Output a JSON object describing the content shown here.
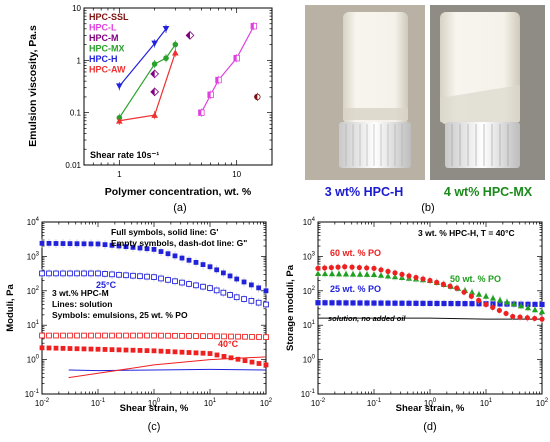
{
  "panels": {
    "a": {
      "label": "(a)",
      "chart_data": {
        "type": "scatter",
        "xscale": "log",
        "yscale": "log",
        "xlim": [
          0.5,
          20
        ],
        "ylim": [
          0.01,
          10
        ],
        "xticks": [
          "1",
          "10"
        ],
        "yticks": [
          "0.01",
          "0.1",
          "1",
          "10"
        ],
        "xlabel": "Polymer concentration, wt. %",
        "ylabel": "Emulsion viscosity, Pa.s",
        "annotation": "Shear rate 10s⁻¹",
        "legend_position": "top-left",
        "series": [
          {
            "name": "HPC-SSL",
            "color": "#7f1010",
            "marker": "half",
            "line": false,
            "x": [
              15
            ],
            "y": [
              0.2
            ]
          },
          {
            "name": "HPC-L",
            "color": "#e040e0",
            "marker": "square-half",
            "line": true,
            "x": [
              5,
              6,
              7,
              10,
              14
            ],
            "y": [
              0.1,
              0.22,
              0.42,
              1.1,
              4.5
            ]
          },
          {
            "name": "HPC-M",
            "color": "#800080",
            "marker": "diamond-half",
            "line": false,
            "x": [
              2,
              2,
              4
            ],
            "y": [
              0.25,
              0.55,
              3.0
            ]
          },
          {
            "name": "HPC-MX",
            "color": "#2aa12a",
            "marker": "circle",
            "line": true,
            "x": [
              1,
              2,
              2.5,
              3
            ],
            "y": [
              0.08,
              0.85,
              1.1,
              2.0
            ]
          },
          {
            "name": "HPC-H",
            "color": "#2222dd",
            "marker": "tri-down",
            "line": true,
            "x": [
              1,
              2,
              2.5
            ],
            "y": [
              0.32,
              2.1,
              4.0
            ]
          },
          {
            "name": "HPC-AW",
            "color": "#ee3030",
            "marker": "tri-up",
            "line": true,
            "x": [
              1,
              2,
              3
            ],
            "y": [
              0.07,
              0.09,
              1.4
            ]
          }
        ]
      }
    },
    "b": {
      "label": "(b)",
      "photo_labels": [
        {
          "text": "3 wt% HPC-H",
          "color": "#1a1ad0"
        },
        {
          "text": "4 wt% HPC-MX",
          "color": "#1a8a1a"
        }
      ]
    },
    "c": {
      "label": "(c)",
      "chart_data": {
        "type": "line",
        "xscale": "log",
        "yscale": "log",
        "xlim": [
          0.01,
          100
        ],
        "ylim": [
          0.1,
          10000
        ],
        "xticks": [
          "10-2",
          "10-1",
          "100",
          "101",
          "102"
        ],
        "yticks": [
          "10-1",
          "100",
          "101",
          "102",
          "103",
          "104"
        ],
        "xlabel": "Shear strain, %",
        "ylabel": "Moduli, Pa",
        "notes": [
          "Full symbols, solid line: G'",
          "Empty symbols, dash-dot line: G\"",
          "3 wt.% HPC-M",
          "Lines: solution",
          "Symbols: emulsions, 25 wt. % PO"
        ],
        "labels": [
          {
            "text": "25°C",
            "color": "#2222dd"
          },
          {
            "text": "40°C",
            "color": "#ee2020"
          }
        ],
        "series": [
          {
            "color": "#2222dd",
            "style": "filled-square",
            "x": [
              0.01,
              0.1,
              1,
              10,
              30,
              100
            ],
            "y": [
              2400,
              2300,
              1600,
              500,
              220,
              100
            ]
          },
          {
            "color": "#2222dd",
            "style": "open-square",
            "x": [
              0.01,
              0.1,
              1,
              10,
              30,
              100
            ],
            "y": [
              320,
              320,
              250,
              120,
              65,
              40
            ]
          },
          {
            "color": "#ee2020",
            "style": "open-square",
            "x": [
              0.01,
              0.1,
              1,
              10,
              100
            ],
            "y": [
              5,
              5,
              5,
              4.8,
              4.5
            ]
          },
          {
            "color": "#ee2020",
            "style": "filled-square",
            "x": [
              0.01,
              0.1,
              1,
              10,
              100
            ],
            "y": [
              2.2,
              2.0,
              1.8,
              1.5,
              0.7
            ]
          },
          {
            "color": "#2222dd",
            "style": "solid-line",
            "x": [
              0.03,
              0.1,
              1,
              10,
              100
            ],
            "y": [
              0.5,
              0.48,
              0.5,
              0.52,
              0.5
            ]
          },
          {
            "color": "#ee2020",
            "style": "solid-line",
            "x": [
              0.03,
              0.1,
              1,
              10,
              100
            ],
            "y": [
              0.3,
              0.4,
              0.7,
              1.0,
              1.2
            ]
          }
        ]
      }
    },
    "d": {
      "label": "(d)",
      "chart_data": {
        "type": "line",
        "xscale": "log",
        "yscale": "log",
        "xlim": [
          0.01,
          100
        ],
        "ylim": [
          0.1,
          10000
        ],
        "xticks": [
          "10-2",
          "10-1",
          "100",
          "101",
          "102"
        ],
        "yticks": [
          "10-1",
          "100",
          "101",
          "102",
          "103",
          "104"
        ],
        "xlabel": "Shear strain, %",
        "ylabel": "Storage moduli, Pa",
        "title": "3 wt. % HPC-H, T = 40°C",
        "series": [
          {
            "name": "60 wt. % PO",
            "color": "#ee2020",
            "style": "filled-circle",
            "x": [
              0.01,
              0.03,
              0.1,
              1,
              3,
              10,
              30,
              100
            ],
            "y": [
              450,
              500,
              450,
              200,
              120,
              40,
              18,
              15
            ]
          },
          {
            "name": "50 wt. % PO",
            "color": "#1fa01f",
            "style": "filled-triangle",
            "x": [
              0.01,
              0.1,
              1,
              10,
              100
            ],
            "y": [
              320,
              300,
              200,
              70,
              25
            ]
          },
          {
            "name": "25 wt. % PO",
            "color": "#2222dd",
            "style": "filled-square",
            "x": [
              0.01,
              0.1,
              1,
              10,
              100
            ],
            "y": [
              45,
              44,
              43,
              42,
              40
            ]
          },
          {
            "name": "solution, no added oil",
            "color": "#111111",
            "style": "solid-line",
            "x": [
              0.01,
              0.1,
              1,
              10,
              100
            ],
            "y": [
              16,
              16,
              16,
              15,
              15
            ]
          }
        ]
      }
    }
  }
}
